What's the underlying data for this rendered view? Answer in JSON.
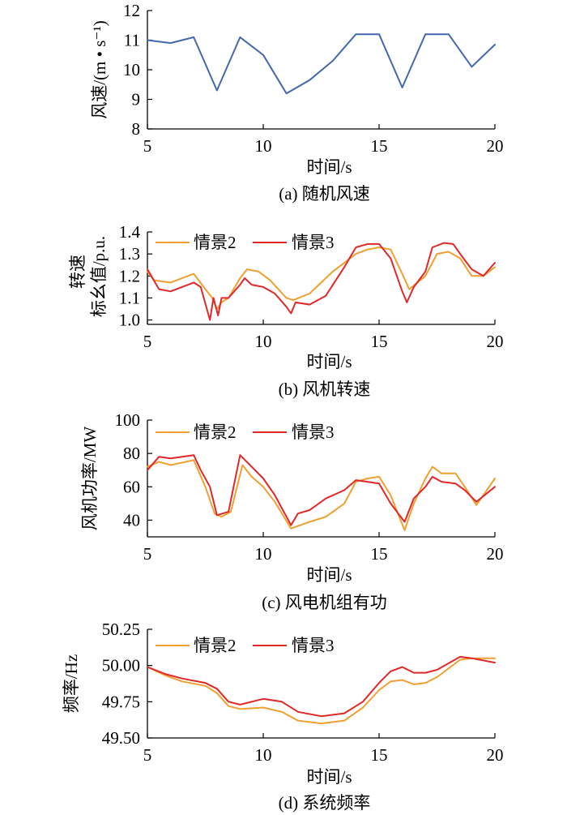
{
  "figure": {
    "x_title": "时间/s",
    "x_ticks": [
      5,
      10,
      15,
      20
    ],
    "colors": {
      "series2": "#f0a030",
      "series3": "#e02828",
      "wind": "#4468b0"
    }
  },
  "chart_data": [
    {
      "id": "a",
      "type": "line",
      "caption": "(a)  随机风速",
      "ylabel": "风速/(m • s⁻¹)",
      "xlim": [
        5,
        20
      ],
      "ylim": [
        8,
        12
      ],
      "y_ticks": [
        "8",
        "9",
        "10",
        "11",
        "12"
      ],
      "grid": false,
      "legend": "none",
      "series": [
        {
          "color_key": "wind",
          "x": [
            5,
            6,
            7,
            8,
            9,
            10,
            11,
            12,
            13,
            14,
            15,
            16,
            17,
            18,
            19,
            20
          ],
          "y": [
            11.0,
            10.9,
            11.1,
            9.3,
            11.1,
            10.5,
            9.2,
            9.65,
            10.3,
            11.2,
            11.2,
            9.4,
            11.2,
            11.2,
            10.1,
            10.85
          ]
        }
      ]
    },
    {
      "id": "b",
      "type": "line",
      "caption": "(b)  风机转速",
      "ylabel_lines": [
        "转速",
        "标幺值/p.u."
      ],
      "xlim": [
        5,
        20
      ],
      "ylim": [
        0.98,
        1.4
      ],
      "y_ticks": [
        "1.0",
        "1.1",
        "1.2",
        "1.3",
        "1.4"
      ],
      "grid": false,
      "legend": "top-left",
      "series": [
        {
          "name": "情景2",
          "color_key": "series2",
          "x": [
            5,
            5.3,
            6,
            7,
            7.5,
            7.8,
            8,
            8.2,
            8.5,
            9,
            9.3,
            9.8,
            10.3,
            11,
            11.3,
            12,
            13,
            14,
            14.5,
            15,
            15.5,
            16,
            16.3,
            17,
            17.5,
            18,
            18.5,
            19,
            19.5,
            20
          ],
          "y": [
            1.22,
            1.18,
            1.17,
            1.21,
            1.14,
            1.1,
            1.05,
            1.08,
            1.1,
            1.19,
            1.23,
            1.22,
            1.18,
            1.1,
            1.09,
            1.12,
            1.22,
            1.3,
            1.32,
            1.33,
            1.32,
            1.21,
            1.14,
            1.2,
            1.3,
            1.31,
            1.28,
            1.2,
            1.2,
            1.24
          ]
        },
        {
          "name": "情景3",
          "color_key": "series3",
          "x": [
            5,
            5.5,
            6,
            7,
            7.3,
            7.7,
            7.85,
            7.95,
            8.05,
            8.2,
            8.5,
            9,
            9.2,
            9.5,
            10,
            10.5,
            11,
            11.2,
            11.4,
            12,
            12.7,
            13.5,
            14,
            14.5,
            15,
            15.5,
            16,
            16.2,
            16.5,
            17,
            17.3,
            17.8,
            18.2,
            18.5,
            19,
            19.5,
            20
          ],
          "y": [
            1.23,
            1.14,
            1.13,
            1.17,
            1.15,
            1.0,
            1.1,
            1.06,
            1.02,
            1.1,
            1.1,
            1.16,
            1.19,
            1.16,
            1.15,
            1.12,
            1.06,
            1.03,
            1.08,
            1.07,
            1.11,
            1.24,
            1.33,
            1.345,
            1.345,
            1.28,
            1.13,
            1.08,
            1.15,
            1.22,
            1.33,
            1.35,
            1.345,
            1.3,
            1.23,
            1.2,
            1.26
          ]
        }
      ]
    },
    {
      "id": "c",
      "type": "line",
      "caption": "(c)  风电机组有功",
      "ylabel": "风机功率/MW",
      "xlim": [
        5,
        20
      ],
      "ylim": [
        30,
        100
      ],
      "y_ticks": [
        "40",
        "60",
        "80",
        "100"
      ],
      "grid": false,
      "legend": "top-left",
      "series": [
        {
          "name": "情景2",
          "color_key": "series2",
          "x": [
            5,
            5.5,
            6,
            7,
            7.5,
            7.9,
            8.2,
            8.6,
            9.1,
            9.5,
            10,
            10.5,
            11.2,
            12,
            12.7,
            13.5,
            14,
            14.5,
            15,
            15.5,
            16.1,
            16.5,
            17,
            17.3,
            17.7,
            18.3,
            18.7,
            19.2,
            20
          ],
          "y": [
            72,
            75,
            73,
            76,
            60,
            44,
            42,
            45,
            73,
            66,
            60,
            51,
            35,
            39,
            42,
            50,
            63,
            65,
            66,
            55,
            34,
            50,
            65,
            72,
            68,
            68,
            60,
            49,
            65
          ]
        },
        {
          "name": "情景3",
          "color_key": "series3",
          "x": [
            5,
            5.5,
            6,
            7,
            7.3,
            7.7,
            8,
            8.5,
            9,
            9.5,
            10,
            10.5,
            11.2,
            11.5,
            12,
            12.7,
            13.5,
            14,
            14.5,
            15,
            15.5,
            16.1,
            16.5,
            17,
            17.3,
            17.7,
            18.3,
            18.7,
            19.2,
            20
          ],
          "y": [
            70,
            78,
            77,
            79,
            70,
            60,
            43,
            45,
            79,
            72,
            65,
            55,
            37,
            44,
            46,
            53,
            58,
            64,
            63,
            62,
            50,
            39,
            53,
            60,
            66,
            63,
            62,
            58,
            51,
            60
          ]
        }
      ]
    },
    {
      "id": "d",
      "type": "line",
      "caption": "(d)  系统频率",
      "ylabel": "频率/Hz",
      "xlim": [
        5,
        20
      ],
      "ylim": [
        49.5,
        50.25
      ],
      "y_ticks": [
        "49.50",
        "49.75",
        "50.00",
        "50.25"
      ],
      "grid": false,
      "legend": "top-left",
      "series": [
        {
          "name": "情景2",
          "color_key": "series2",
          "x": [
            5,
            5.8,
            6.5,
            7.5,
            8,
            8.5,
            9,
            10,
            10.8,
            11.5,
            12.5,
            13.5,
            14.3,
            15,
            15.5,
            16,
            16.5,
            17,
            17.5,
            18.5,
            19,
            20
          ],
          "y": [
            49.99,
            49.93,
            49.89,
            49.86,
            49.81,
            49.72,
            49.7,
            49.71,
            49.68,
            49.62,
            49.6,
            49.62,
            49.71,
            49.83,
            49.89,
            49.9,
            49.87,
            49.88,
            49.92,
            50.04,
            50.05,
            50.05
          ]
        },
        {
          "name": "情景3",
          "color_key": "series3",
          "x": [
            5,
            5.8,
            6.5,
            7.5,
            8,
            8.5,
            9,
            10,
            10.8,
            11.5,
            12.5,
            13.5,
            14.3,
            15,
            15.5,
            16,
            16.5,
            17,
            17.5,
            18.5,
            19,
            20
          ],
          "y": [
            49.99,
            49.94,
            49.91,
            49.88,
            49.84,
            49.75,
            49.73,
            49.77,
            49.75,
            49.68,
            49.65,
            49.67,
            49.75,
            49.88,
            49.96,
            49.99,
            49.95,
            49.95,
            49.97,
            50.06,
            50.05,
            50.02
          ]
        }
      ]
    }
  ]
}
